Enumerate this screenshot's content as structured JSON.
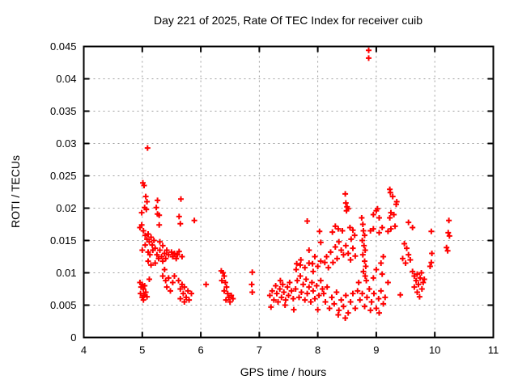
{
  "chart": {
    "title": "Day 221 of 2025, Rate Of TEC Index for receiver cuib",
    "xlabel": "GPS time / hours",
    "ylabel": "ROTI / TECUs"
  },
  "chart_data": {
    "type": "scatter",
    "title": "Day 221 of 2025, Rate Of TEC Index for receiver cuib",
    "xlabel": "GPS time / hours",
    "ylabel": "ROTI / TECUs",
    "xlim": [
      4,
      11
    ],
    "ylim": [
      0,
      0.045
    ],
    "xticks": [
      4,
      5,
      6,
      7,
      8,
      9,
      10,
      11
    ],
    "xtick_labels": [
      "4",
      "5",
      "6",
      "7",
      "8",
      "9",
      "10",
      "11"
    ],
    "yticks": [
      0,
      0.005,
      0.01,
      0.015,
      0.02,
      0.025,
      0.03,
      0.035,
      0.04,
      0.045
    ],
    "ytick_labels": [
      "0",
      "0.005",
      "0.01",
      "0.015",
      "0.02",
      "0.025",
      "0.03",
      "0.035",
      "0.04",
      "0.045"
    ],
    "grid": true,
    "legend_position": "none",
    "marker": {
      "shape": "plus",
      "color": "#ff0000",
      "size": 7,
      "stroke_width": 2
    },
    "axis_color": "#000000",
    "grid_color": "#9e9e9e",
    "series": [
      {
        "name": "ROTI",
        "points": [
          [
            4.96,
            0.017
          ],
          [
            4.99,
            0.0193
          ],
          [
            4.99,
            0.0174
          ],
          [
            5.01,
            0.0239
          ],
          [
            5.03,
            0.0235
          ],
          [
            5.04,
            0.0201
          ],
          [
            5.06,
            0.0218
          ],
          [
            5.07,
            0.0198
          ],
          [
            5.08,
            0.021
          ],
          [
            5.09,
            0.0293
          ],
          [
            5.24,
            0.0201
          ],
          [
            5.26,
            0.0212
          ],
          [
            5.26,
            0.0191
          ],
          [
            5.29,
            0.0189
          ],
          [
            5.29,
            0.0174
          ],
          [
            5.63,
            0.0187
          ],
          [
            5.65,
            0.0176
          ],
          [
            5.66,
            0.0214
          ],
          [
            5.89,
            0.0181
          ],
          [
            5.02,
            0.0165
          ],
          [
            5.05,
            0.0158
          ],
          [
            5.08,
            0.0152
          ],
          [
            5.1,
            0.016
          ],
          [
            5.12,
            0.0148
          ],
          [
            5.15,
            0.0155
          ],
          [
            5.17,
            0.0143
          ],
          [
            5.2,
            0.015
          ],
          [
            5.22,
            0.0138
          ],
          [
            5.05,
            0.0143
          ],
          [
            5.0,
            0.0135
          ],
          [
            5.1,
            0.0132
          ],
          [
            5.13,
            0.0128
          ],
          [
            5.18,
            0.0135
          ],
          [
            5.25,
            0.0128
          ],
          [
            5.28,
            0.0122
          ],
          [
            5.3,
            0.0135
          ],
          [
            5.33,
            0.0125
          ],
          [
            5.35,
            0.0118
          ],
          [
            5.38,
            0.013
          ],
          [
            5.4,
            0.0122
          ],
          [
            5.3,
            0.0148
          ],
          [
            5.35,
            0.0142
          ],
          [
            5.42,
            0.0135
          ],
          [
            5.45,
            0.0128
          ],
          [
            5.5,
            0.0132
          ],
          [
            5.52,
            0.0125
          ],
          [
            5.55,
            0.013
          ],
          [
            5.58,
            0.0122
          ],
          [
            5.6,
            0.0128
          ],
          [
            5.63,
            0.0133
          ],
          [
            5.68,
            0.0125
          ],
          [
            5.1,
            0.0118
          ],
          [
            5.15,
            0.0112
          ],
          [
            5.22,
            0.0115
          ],
          [
            4.96,
            0.0085
          ],
          [
            4.98,
            0.0078
          ],
          [
            5.0,
            0.0082
          ],
          [
            5.02,
            0.0075
          ],
          [
            5.04,
            0.008
          ],
          [
            4.97,
            0.0068
          ],
          [
            5.0,
            0.0062
          ],
          [
            5.03,
            0.0065
          ],
          [
            5.06,
            0.007
          ],
          [
            5.08,
            0.0063
          ],
          [
            5.12,
            0.009
          ],
          [
            5.02,
            0.0058
          ],
          [
            5.35,
            0.0095
          ],
          [
            5.4,
            0.0088
          ],
          [
            5.45,
            0.0092
          ],
          [
            5.42,
            0.0078
          ],
          [
            5.48,
            0.0072
          ],
          [
            5.52,
            0.0085
          ],
          [
            5.38,
            0.0105
          ],
          [
            5.55,
            0.0095
          ],
          [
            5.62,
            0.0088
          ],
          [
            5.65,
            0.0075
          ],
          [
            5.68,
            0.0082
          ],
          [
            5.7,
            0.0068
          ],
          [
            5.72,
            0.0078
          ],
          [
            5.75,
            0.0062
          ],
          [
            5.78,
            0.0072
          ],
          [
            5.8,
            0.0058
          ],
          [
            5.65,
            0.006
          ],
          [
            5.72,
            0.0055
          ],
          [
            5.84,
            0.0068
          ],
          [
            6.09,
            0.0082
          ],
          [
            6.35,
            0.0103
          ],
          [
            6.38,
            0.01
          ],
          [
            6.4,
            0.0095
          ],
          [
            6.36,
            0.0088
          ],
          [
            6.42,
            0.0085
          ],
          [
            6.44,
            0.0078
          ],
          [
            6.4,
            0.0072
          ],
          [
            6.46,
            0.0068
          ],
          [
            6.48,
            0.0062
          ],
          [
            6.43,
            0.0058
          ],
          [
            6.5,
            0.0055
          ],
          [
            6.52,
            0.0065
          ],
          [
            6.55,
            0.006
          ],
          [
            6.88,
            0.0101
          ],
          [
            6.87,
            0.0082
          ],
          [
            6.88,
            0.007
          ],
          [
            7.18,
            0.0065
          ],
          [
            7.2,
            0.0047
          ],
          [
            7.22,
            0.0072
          ],
          [
            7.25,
            0.0058
          ],
          [
            7.28,
            0.008
          ],
          [
            7.3,
            0.0068
          ],
          [
            7.32,
            0.0055
          ],
          [
            7.35,
            0.0075
          ],
          [
            7.38,
            0.0062
          ],
          [
            7.4,
            0.0082
          ],
          [
            7.42,
            0.007
          ],
          [
            7.45,
            0.0058
          ],
          [
            7.48,
            0.0078
          ],
          [
            7.5,
            0.0065
          ],
          [
            7.52,
            0.0085
          ],
          [
            7.55,
            0.0072
          ],
          [
            7.58,
            0.006
          ],
          [
            7.59,
            0.0043
          ],
          [
            7.44,
            0.005
          ],
          [
            7.36,
            0.0088
          ],
          [
            7.62,
            0.0075
          ],
          [
            7.65,
            0.0088
          ],
          [
            7.68,
            0.0062
          ],
          [
            7.7,
            0.0095
          ],
          [
            7.72,
            0.007
          ],
          [
            7.75,
            0.0082
          ],
          [
            7.78,
            0.0058
          ],
          [
            7.8,
            0.009
          ],
          [
            7.82,
            0.0068
          ],
          [
            7.85,
            0.0078
          ],
          [
            7.88,
            0.0055
          ],
          [
            7.9,
            0.0085
          ],
          [
            7.92,
            0.0072
          ],
          [
            7.95,
            0.006
          ],
          [
            7.98,
            0.008
          ],
          [
            8.0,
            0.0043
          ],
          [
            8.02,
            0.0065
          ],
          [
            8.05,
            0.0088
          ],
          [
            8.08,
            0.0075
          ],
          [
            7.63,
            0.0105
          ],
          [
            7.7,
            0.0112
          ],
          [
            7.78,
            0.0108
          ],
          [
            7.85,
            0.0115
          ],
          [
            7.92,
            0.0102
          ],
          [
            8.0,
            0.011
          ],
          [
            8.05,
            0.0118
          ],
          [
            7.64,
            0.0114
          ],
          [
            7.71,
            0.012
          ],
          [
            7.91,
            0.0114
          ],
          [
            7.82,
            0.018
          ],
          [
            8.03,
            0.0164
          ],
          [
            8.05,
            0.0147
          ],
          [
            7.85,
            0.0135
          ],
          [
            7.95,
            0.0125
          ],
          [
            8.47,
            0.0222
          ],
          [
            8.48,
            0.0208
          ],
          [
            8.5,
            0.0202
          ],
          [
            8.49,
            0.0196
          ],
          [
            8.52,
            0.0199
          ],
          [
            8.3,
            0.0172
          ],
          [
            8.35,
            0.0168
          ],
          [
            8.42,
            0.0165
          ],
          [
            8.55,
            0.017
          ],
          [
            8.6,
            0.0166
          ],
          [
            8.25,
            0.0163
          ],
          [
            8.12,
            0.0116
          ],
          [
            8.15,
            0.0125
          ],
          [
            8.18,
            0.0108
          ],
          [
            8.22,
            0.0132
          ],
          [
            8.26,
            0.0116
          ],
          [
            8.3,
            0.014
          ],
          [
            8.33,
            0.0122
          ],
          [
            8.36,
            0.0148
          ],
          [
            8.4,
            0.0135
          ],
          [
            8.44,
            0.0128
          ],
          [
            8.48,
            0.0142
          ],
          [
            8.52,
            0.013
          ],
          [
            8.56,
            0.012
          ],
          [
            8.6,
            0.0138
          ],
          [
            8.64,
            0.0126
          ],
          [
            8.57,
            0.0152
          ],
          [
            8.63,
            0.0158
          ],
          [
            8.1,
            0.0068
          ],
          [
            8.13,
            0.0055
          ],
          [
            8.16,
            0.0078
          ],
          [
            8.2,
            0.0045
          ],
          [
            8.24,
            0.0062
          ],
          [
            8.28,
            0.0052
          ],
          [
            8.32,
            0.007
          ],
          [
            8.36,
            0.0042
          ],
          [
            8.4,
            0.0058
          ],
          [
            8.44,
            0.0048
          ],
          [
            8.48,
            0.0065
          ],
          [
            8.52,
            0.0038
          ],
          [
            8.56,
            0.0055
          ],
          [
            8.6,
            0.0068
          ],
          [
            8.64,
            0.0045
          ],
          [
            8.35,
            0.0035
          ],
          [
            8.47,
            0.003
          ],
          [
            8.87,
            0.0444
          ],
          [
            8.87,
            0.0432
          ],
          [
            9.02,
            0.0199
          ],
          [
            9.0,
            0.0196
          ],
          [
            8.95,
            0.019
          ],
          [
            9.05,
            0.0185
          ],
          [
            8.9,
            0.0165
          ],
          [
            8.95,
            0.0168
          ],
          [
            9.05,
            0.0162
          ],
          [
            9.1,
            0.017
          ],
          [
            8.75,
            0.0185
          ],
          [
            8.77,
            0.0175
          ],
          [
            8.78,
            0.0165
          ],
          [
            8.8,
            0.0158
          ],
          [
            8.76,
            0.015
          ],
          [
            8.79,
            0.0142
          ],
          [
            8.81,
            0.0135
          ],
          [
            8.77,
            0.0128
          ],
          [
            8.8,
            0.0118
          ],
          [
            8.82,
            0.011
          ],
          [
            8.78,
            0.0102
          ],
          [
            8.81,
            0.0095
          ],
          [
            8.83,
            0.0088
          ],
          [
            8.68,
            0.0072
          ],
          [
            8.72,
            0.0058
          ],
          [
            8.76,
            0.0068
          ],
          [
            8.8,
            0.0048
          ],
          [
            8.84,
            0.0062
          ],
          [
            8.88,
            0.0075
          ],
          [
            8.92,
            0.0055
          ],
          [
            8.96,
            0.0068
          ],
          [
            9.0,
            0.0045
          ],
          [
            9.04,
            0.006
          ],
          [
            9.08,
            0.0072
          ],
          [
            9.12,
            0.0052
          ],
          [
            8.9,
            0.0042
          ],
          [
            9.05,
            0.0038
          ],
          [
            8.7,
            0.0085
          ],
          [
            8.95,
            0.0092
          ],
          [
            9.0,
            0.0105
          ],
          [
            9.08,
            0.0115
          ],
          [
            9.12,
            0.0125
          ],
          [
            9.1,
            0.0098
          ],
          [
            9.23,
            0.0229
          ],
          [
            9.24,
            0.0224
          ],
          [
            9.28,
            0.0218
          ],
          [
            9.35,
            0.021
          ],
          [
            9.34,
            0.0206
          ],
          [
            9.25,
            0.0193
          ],
          [
            9.3,
            0.019
          ],
          [
            9.23,
            0.0185
          ],
          [
            9.25,
            0.0168
          ],
          [
            9.2,
            0.0164
          ],
          [
            9.32,
            0.0172
          ],
          [
            9.41,
            0.0066
          ],
          [
            9.15,
            0.0062
          ],
          [
            9.2,
            0.0085
          ],
          [
            9.55,
            0.0178
          ],
          [
            9.62,
            0.017
          ],
          [
            9.48,
            0.0145
          ],
          [
            9.52,
            0.0138
          ],
          [
            9.55,
            0.0128
          ],
          [
            9.58,
            0.012
          ],
          [
            9.45,
            0.0122
          ],
          [
            9.5,
            0.0115
          ],
          [
            9.62,
            0.0102
          ],
          [
            9.65,
            0.0095
          ],
          [
            9.68,
            0.0088
          ],
          [
            9.7,
            0.0098
          ],
          [
            9.72,
            0.0082
          ],
          [
            9.75,
            0.0092
          ],
          [
            9.78,
            0.0075
          ],
          [
            9.8,
            0.0085
          ],
          [
            9.65,
            0.0078
          ],
          [
            9.7,
            0.007
          ],
          [
            9.74,
            0.0063
          ],
          [
            9.77,
            0.01
          ],
          [
            9.82,
            0.009
          ],
          [
            9.95,
            0.013
          ],
          [
            9.94,
            0.0164
          ],
          [
            9.94,
            0.0116
          ],
          [
            9.92,
            0.011
          ],
          [
            10.24,
            0.0181
          ],
          [
            10.23,
            0.0162
          ],
          [
            10.25,
            0.0157
          ],
          [
            10.2,
            0.0139
          ],
          [
            10.22,
            0.0134
          ]
        ]
      }
    ]
  }
}
